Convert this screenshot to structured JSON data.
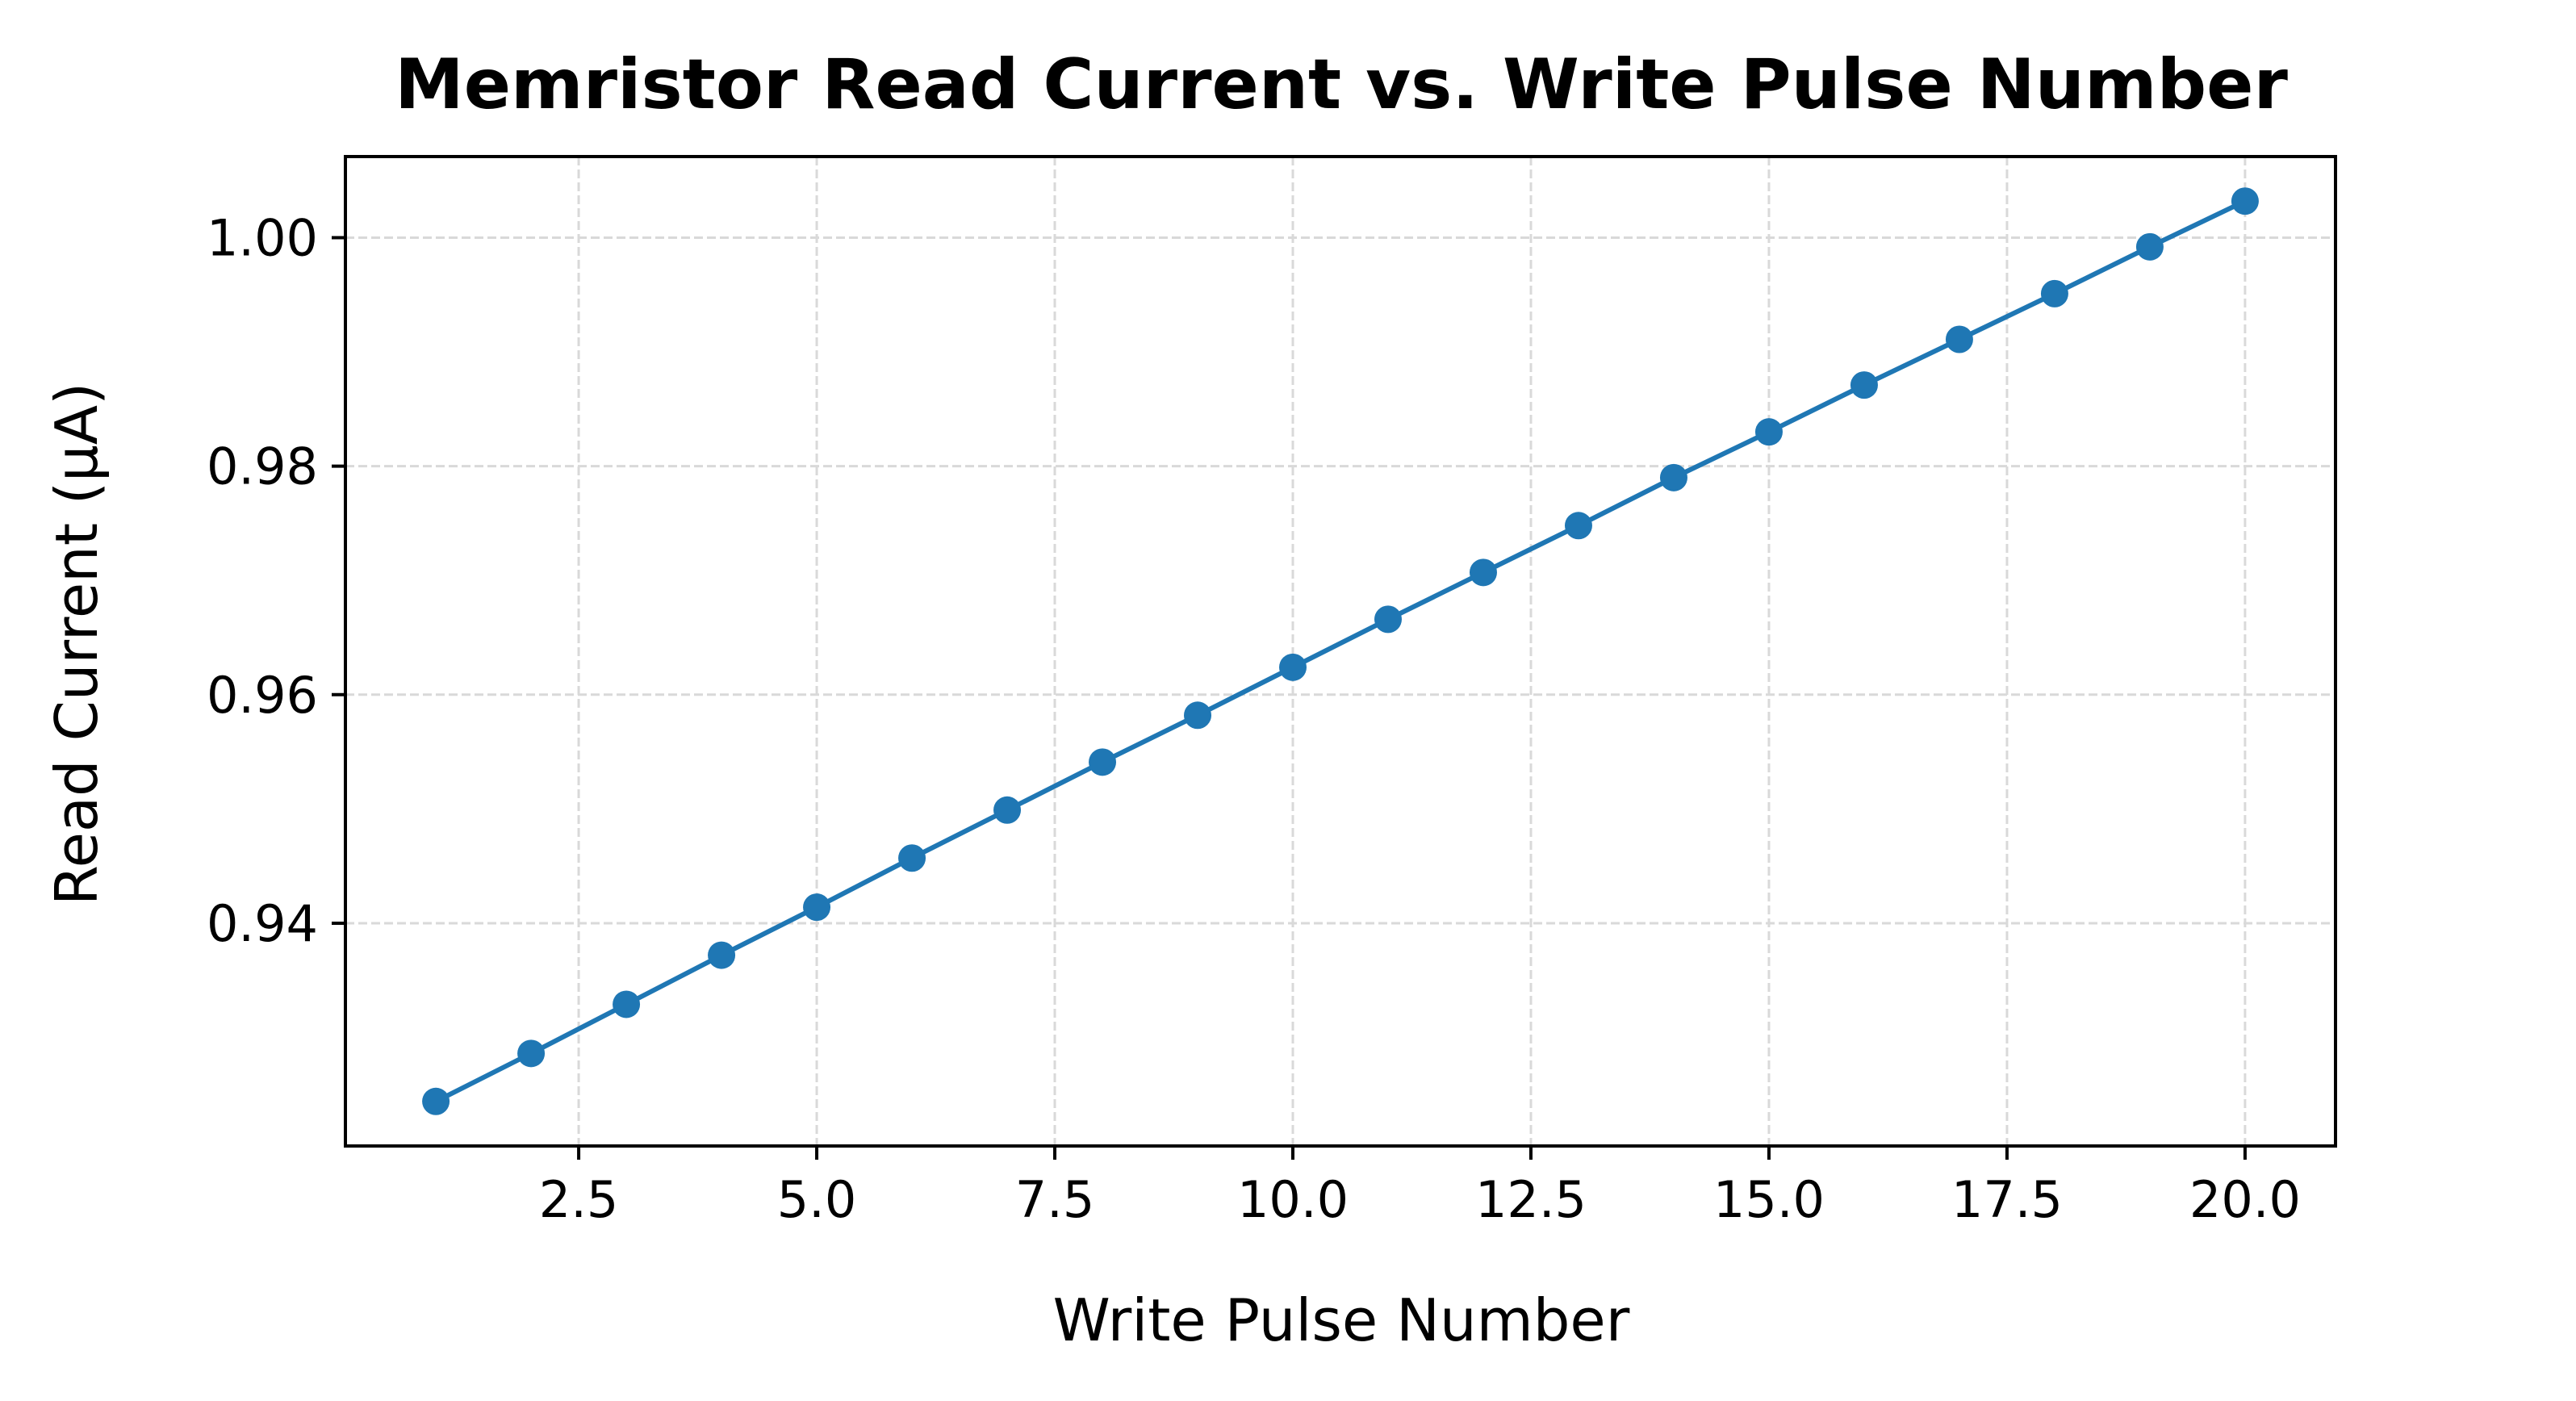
{
  "chart_data": {
    "type": "line",
    "title": "Memristor Read Current vs. Write Pulse Number",
    "xlabel": "Write Pulse Number",
    "ylabel": "Read Current (μA)",
    "xlim": [
      0.05,
      20.95
    ],
    "ylim": [
      0.9205,
      1.0071
    ],
    "xticks": [
      2.5,
      5.0,
      7.5,
      10.0,
      12.5,
      15.0,
      17.5,
      20.0
    ],
    "xtick_labels": [
      "2.5",
      "5.0",
      "7.5",
      "10.0",
      "12.5",
      "15.0",
      "17.5",
      "20.0"
    ],
    "yticks": [
      0.94,
      0.96,
      0.98,
      1.0
    ],
    "ytick_labels": [
      "0.94",
      "0.96",
      "0.98",
      "1.00"
    ],
    "grid": true,
    "series": [
      {
        "color": "#1f77b4",
        "marker": "circle",
        "x": [
          1,
          2,
          3,
          4,
          5,
          6,
          7,
          8,
          9,
          10,
          11,
          12,
          13,
          14,
          15,
          16,
          17,
          18,
          19,
          20
        ],
        "y": [
          0.9244,
          0.9286,
          0.9329,
          0.9372,
          0.9414,
          0.9457,
          0.9499,
          0.9541,
          0.9582,
          0.9624,
          0.9666,
          0.9707,
          0.9748,
          0.979,
          0.983,
          0.9871,
          0.9911,
          0.9951,
          0.9992,
          1.0032
        ]
      }
    ],
    "colors": {
      "grid": "#d9d9d9",
      "axes": "#000000",
      "background": "#ffffff"
    }
  }
}
